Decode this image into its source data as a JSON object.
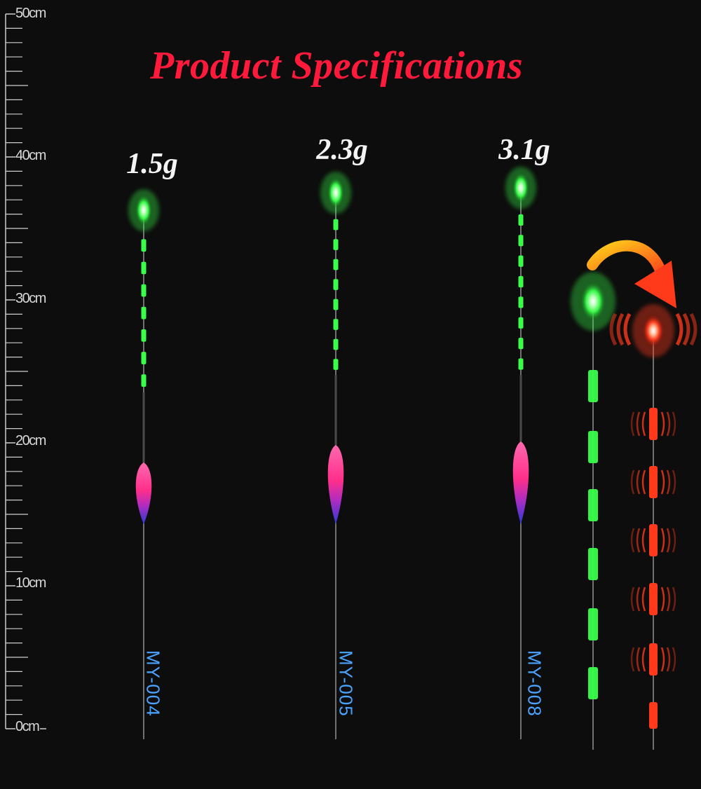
{
  "title": "Product Specifications",
  "ruler": {
    "labels": [
      "50cm",
      "40cm",
      "30cm",
      "20cm",
      "10cm",
      "0cm"
    ]
  },
  "floats": [
    {
      "weight": "1.5g",
      "model": "MY-004",
      "light_color": "#39ff4a"
    },
    {
      "weight": "2.3g",
      "model": "MY-005",
      "light_color": "#39ff4a"
    },
    {
      "weight": "3.1g",
      "model": "MY-008",
      "light_color": "#39ff4a"
    }
  ],
  "demo": {
    "before_color": "#39ff4a",
    "after_color": "#ff3a1a",
    "arrow_colors": [
      "#ffd21a",
      "#ff3a1a"
    ]
  },
  "colors": {
    "title": "#ff1a3c",
    "weight_text": "#f4f4f4",
    "model_text": "#4aa3ff",
    "body_pink": "#ff2f8a",
    "body_blue": "#2a3bd6"
  }
}
